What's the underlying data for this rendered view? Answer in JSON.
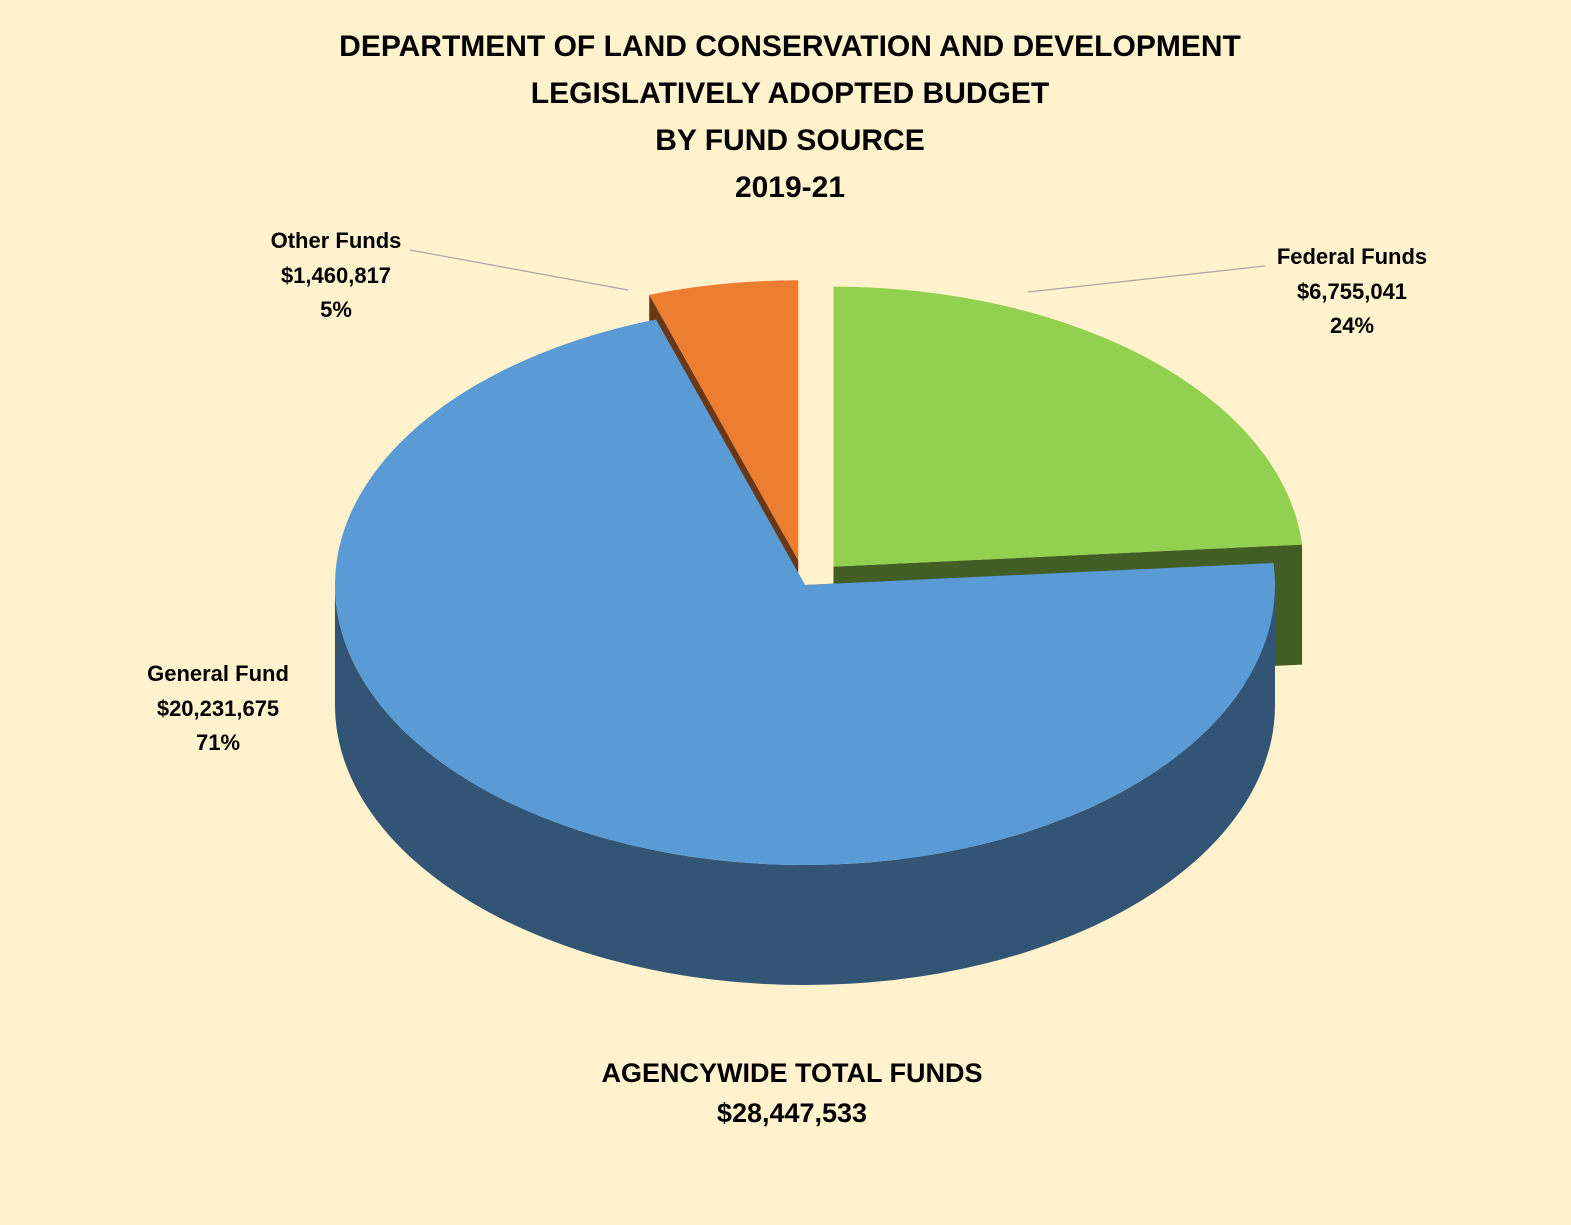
{
  "chart_data": {
    "type": "pie",
    "title": [
      "DEPARTMENT OF LAND CONSERVATION AND DEVELOPMENT",
      "LEGISLATIVELY ADOPTED BUDGET",
      "BY FUND SOURCE",
      "2019-21"
    ],
    "categories": [
      "Federal Funds",
      "General Fund",
      "Other Funds"
    ],
    "values": [
      6755041,
      20231675,
      1460817
    ],
    "value_labels": [
      "$6,755,041",
      "$20,231,675",
      "$1,460,817"
    ],
    "percents": [
      24,
      71,
      5
    ],
    "percent_labels": [
      "24%",
      "71%",
      "5%"
    ],
    "colors": [
      "#92d050",
      "#5b9bd5",
      "#ed7d31"
    ],
    "exploded": [
      true,
      false,
      true
    ],
    "total_label": "AGENCYWIDE TOTAL FUNDS",
    "total": 28447533,
    "total_value_label": "$28,447,533"
  }
}
